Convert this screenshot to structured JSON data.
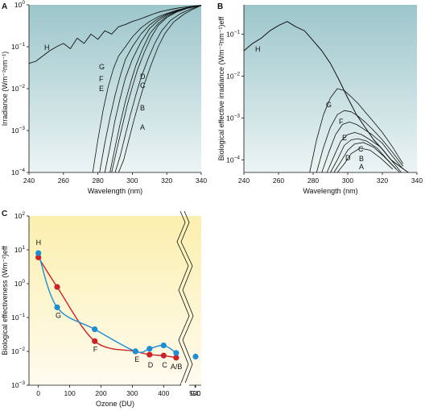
{
  "figure": {
    "panel_labels": [
      "A",
      "B",
      "C"
    ]
  },
  "chart_data": [
    {
      "id": "A",
      "type": "line",
      "panel_label": "A",
      "xlabel": "Wavelength (nm)",
      "ylabel": "Irradiance (Wm⁻²nm⁻¹)",
      "xlim": [
        240,
        340
      ],
      "ylim": [
        0.0001,
        1
      ],
      "yscale": "log",
      "background": [
        "#9cc6cb",
        "#ecf4f4"
      ],
      "xticks": [
        {
          "v": 240,
          "t": "240"
        },
        {
          "v": 260,
          "t": "260"
        },
        {
          "v": 280,
          "t": "280"
        },
        {
          "v": 300,
          "t": "300"
        },
        {
          "v": 320,
          "t": "320"
        },
        {
          "v": 340,
          "t": "340"
        }
      ],
      "yticks": [
        {
          "v": 0,
          "t": "10",
          "sup": "0"
        },
        {
          "v": -1,
          "t": "10",
          "sup": "−1"
        },
        {
          "v": -2,
          "t": "10",
          "sup": "−2"
        },
        {
          "v": -3,
          "t": "10",
          "sup": "−3"
        },
        {
          "v": -4,
          "t": "10",
          "sup": "−4"
        }
      ],
      "series": [
        {
          "name": "H",
          "x": [
            240,
            244,
            248,
            252,
            256,
            260,
            264,
            268,
            272,
            276,
            280,
            284,
            288,
            292,
            296,
            300,
            304,
            308,
            312,
            316,
            320,
            324,
            328,
            332,
            336,
            340
          ],
          "y": [
            0.04,
            0.045,
            0.06,
            0.08,
            0.1,
            0.12,
            0.09,
            0.16,
            0.12,
            0.2,
            0.15,
            0.24,
            0.2,
            0.3,
            0.34,
            0.4,
            0.45,
            0.52,
            0.6,
            0.68,
            0.74,
            0.8,
            0.86,
            0.9,
            0.94,
            0.97
          ]
        },
        {
          "name": "G",
          "x": [
            277,
            280,
            283,
            286,
            289,
            292,
            296,
            300,
            305,
            310,
            315,
            320,
            326,
            332,
            340
          ],
          "y": [
            0.0001,
            0.0006,
            0.003,
            0.011,
            0.03,
            0.06,
            0.1,
            0.17,
            0.28,
            0.4,
            0.52,
            0.62,
            0.75,
            0.86,
            0.97
          ]
        },
        {
          "name": "F",
          "x": [
            281,
            284,
            287,
            290,
            293,
            296,
            300,
            305,
            310,
            315,
            320,
            326,
            332,
            340
          ],
          "y": [
            0.0001,
            0.0005,
            0.002,
            0.007,
            0.02,
            0.05,
            0.1,
            0.2,
            0.33,
            0.47,
            0.6,
            0.73,
            0.86,
            0.97
          ]
        },
        {
          "name": "E",
          "x": [
            284,
            287,
            290,
            293,
            296,
            300,
            305,
            310,
            315,
            320,
            326,
            332,
            340
          ],
          "y": [
            0.0001,
            0.0004,
            0.0018,
            0.006,
            0.018,
            0.05,
            0.13,
            0.27,
            0.42,
            0.57,
            0.71,
            0.85,
            0.97
          ]
        },
        {
          "name": "D",
          "x": [
            287,
            290,
            293,
            296,
            299,
            302,
            306,
            310,
            315,
            320,
            326,
            332,
            340
          ],
          "y": [
            0.0001,
            0.0004,
            0.0015,
            0.005,
            0.014,
            0.035,
            0.09,
            0.2,
            0.36,
            0.53,
            0.7,
            0.84,
            0.97
          ]
        },
        {
          "name": "C",
          "x": [
            288,
            291,
            294,
            297,
            300,
            303,
            307,
            311,
            315,
            320,
            326,
            332,
            340
          ],
          "y": [
            0.0001,
            0.00035,
            0.0012,
            0.004,
            0.011,
            0.028,
            0.075,
            0.17,
            0.32,
            0.5,
            0.68,
            0.83,
            0.97
          ]
        },
        {
          "name": "B",
          "x": [
            290,
            293,
            296,
            299,
            302,
            305,
            309,
            313,
            317,
            322,
            328,
            334,
            340
          ],
          "y": [
            0.0001,
            0.00025,
            0.0008,
            0.0025,
            0.007,
            0.018,
            0.05,
            0.12,
            0.24,
            0.42,
            0.62,
            0.8,
            0.97
          ]
        },
        {
          "name": "A",
          "x": [
            292,
            295,
            298,
            301,
            304,
            307,
            311,
            315,
            319,
            324,
            330,
            335,
            340
          ],
          "y": [
            0.0001,
            0.0002,
            0.0006,
            0.0018,
            0.005,
            0.013,
            0.038,
            0.1,
            0.21,
            0.39,
            0.6,
            0.78,
            0.97
          ]
        }
      ]
    },
    {
      "id": "B",
      "type": "line",
      "panel_label": "B",
      "xlabel": "Wavelength (nm)",
      "ylabel": "Biological effective irradiance (Wm⁻²nm⁻¹)eff",
      "xlim": [
        240,
        340
      ],
      "ylim": [
        5e-05,
        0.5
      ],
      "yscale": "log",
      "background": [
        "#9cc6cb",
        "#ecf4f4"
      ],
      "xticks": [
        {
          "v": 240,
          "t": "240"
        },
        {
          "v": 260,
          "t": "260"
        },
        {
          "v": 280,
          "t": "280"
        },
        {
          "v": 300,
          "t": "300"
        },
        {
          "v": 320,
          "t": "320"
        },
        {
          "v": 340,
          "t": "340"
        }
      ],
      "yticks": [
        {
          "v": -1,
          "t": "10",
          "sup": "−1"
        },
        {
          "v": -2,
          "t": "10",
          "sup": "−2"
        },
        {
          "v": -3,
          "t": "10",
          "sup": "−3"
        },
        {
          "v": -4,
          "t": "10",
          "sup": "−4"
        }
      ],
      "series": [
        {
          "name": "H",
          "x": [
            240,
            245,
            250,
            255,
            260,
            265,
            270,
            275,
            280,
            285,
            290,
            295,
            300,
            305,
            310,
            315,
            320,
            325,
            330,
            335
          ],
          "y": [
            0.04,
            0.06,
            0.08,
            0.12,
            0.16,
            0.2,
            0.15,
            0.12,
            0.07,
            0.04,
            0.02,
            0.008,
            0.003,
            0.0012,
            0.0006,
            0.0003,
            0.00018,
            0.0001,
            7e-05,
            5e-05
          ]
        },
        {
          "name": "G",
          "x": [
            278,
            282,
            286,
            290,
            294,
            298,
            302,
            306,
            310,
            315,
            320,
            326,
            332
          ],
          "y": [
            5e-05,
            0.0003,
            0.0012,
            0.003,
            0.005,
            0.0045,
            0.0032,
            0.0022,
            0.0014,
            0.0008,
            0.00045,
            0.0002,
            8e-05
          ]
        },
        {
          "name": "F",
          "x": [
            282,
            286,
            290,
            294,
            298,
            302,
            306,
            310,
            315,
            320,
            326,
            332
          ],
          "y": [
            5e-05,
            0.0002,
            0.0006,
            0.0012,
            0.0015,
            0.0014,
            0.0011,
            0.0008,
            0.0005,
            0.0003,
            0.00015,
            7e-05
          ]
        },
        {
          "name": "E",
          "x": [
            285,
            289,
            293,
            297,
            301,
            305,
            309,
            314,
            320,
            326,
            332
          ],
          "y": [
            5e-05,
            0.00015,
            0.0004,
            0.0007,
            0.0008,
            0.0007,
            0.00055,
            0.0004,
            0.00025,
            0.00012,
            6e-05
          ]
        },
        {
          "name": "D",
          "x": [
            288,
            292,
            296,
            300,
            304,
            308,
            313,
            319,
            325,
            331
          ],
          "y": [
            5e-05,
            0.00012,
            0.00028,
            0.0004,
            0.00045,
            0.0004,
            0.0003,
            0.0002,
            0.0001,
            5e-05
          ]
        },
        {
          "name": "C",
          "x": [
            290,
            294,
            298,
            302,
            306,
            311,
            317,
            323,
            330
          ],
          "y": [
            5e-05,
            0.0001,
            0.00022,
            0.0003,
            0.00032,
            0.00028,
            0.00019,
            0.0001,
            5e-05
          ]
        },
        {
          "name": "B",
          "x": [
            292,
            296,
            300,
            304,
            309,
            315,
            321,
            328
          ],
          "y": [
            5e-05,
            9e-05,
            0.00017,
            0.00024,
            0.00026,
            0.0002,
            0.00012,
            6e-05
          ]
        },
        {
          "name": "A",
          "x": [
            294,
            298,
            302,
            307,
            313,
            319,
            326
          ],
          "y": [
            5e-05,
            8e-05,
            0.00014,
            0.00019,
            0.00017,
            0.00011,
            6e-05
          ]
        }
      ]
    },
    {
      "id": "C",
      "type": "line",
      "panel_label": "C",
      "xlabel": "Ozone (DU)",
      "ylabel": "Biological effectiveness (Wm⁻²)eff",
      "xlim": [
        -30,
        520
      ],
      "ylim": [
        0.001,
        100
      ],
      "yscale": "log",
      "background": [
        "#fbefae",
        "#fffbef"
      ],
      "xticks": [
        {
          "v": 0,
          "t": "0"
        },
        {
          "v": 100,
          "t": "100"
        },
        {
          "v": 200,
          "t": "200"
        },
        {
          "v": 300,
          "t": "300"
        },
        {
          "v": 400,
          "t": "400"
        },
        {
          "v": 500,
          "t": "500"
        }
      ],
      "extra_tick": "GC",
      "yticks": [
        {
          "v": 2,
          "t": "10",
          "sup": "2"
        },
        {
          "v": 1,
          "t": "10",
          "sup": "1"
        },
        {
          "v": 0,
          "t": "10",
          "sup": "0"
        },
        {
          "v": -1,
          "t": "10",
          "sup": "−1"
        },
        {
          "v": -2,
          "t": "10",
          "sup": "−2"
        },
        {
          "v": -3,
          "t": "10",
          "sup": "−3"
        }
      ],
      "series": [
        {
          "name": "",
          "color": "#cc2229",
          "x": [
            0,
            60,
            180,
            310,
            355,
            400,
            440
          ],
          "y": [
            6,
            0.8,
            0.02,
            0.01,
            0.008,
            0.0075,
            0.0065
          ]
        },
        {
          "name": "",
          "color": "#1b8fd2",
          "x": [
            0,
            60,
            180,
            310,
            355,
            400,
            440
          ],
          "y": [
            8,
            0.2,
            0.045,
            0.01,
            0.012,
            0.015,
            0.009
          ]
        }
      ],
      "gc_point": {
        "y": 0.007,
        "color": "#1b8fd2"
      },
      "point_labels": [
        {
          "t": "H",
          "x": 0,
          "y": 8
        },
        {
          "t": "G",
          "x": 60,
          "y": 0.2
        },
        {
          "t": "F",
          "x": 180,
          "y": 0.02
        },
        {
          "t": "E",
          "x": 310,
          "y": 0.01
        },
        {
          "t": "D",
          "x": 355,
          "y": 0.008
        },
        {
          "t": "C",
          "x": 400,
          "y": 0.0075
        },
        {
          "t": "A/B",
          "x": 440,
          "y": 0.0065
        }
      ]
    }
  ]
}
